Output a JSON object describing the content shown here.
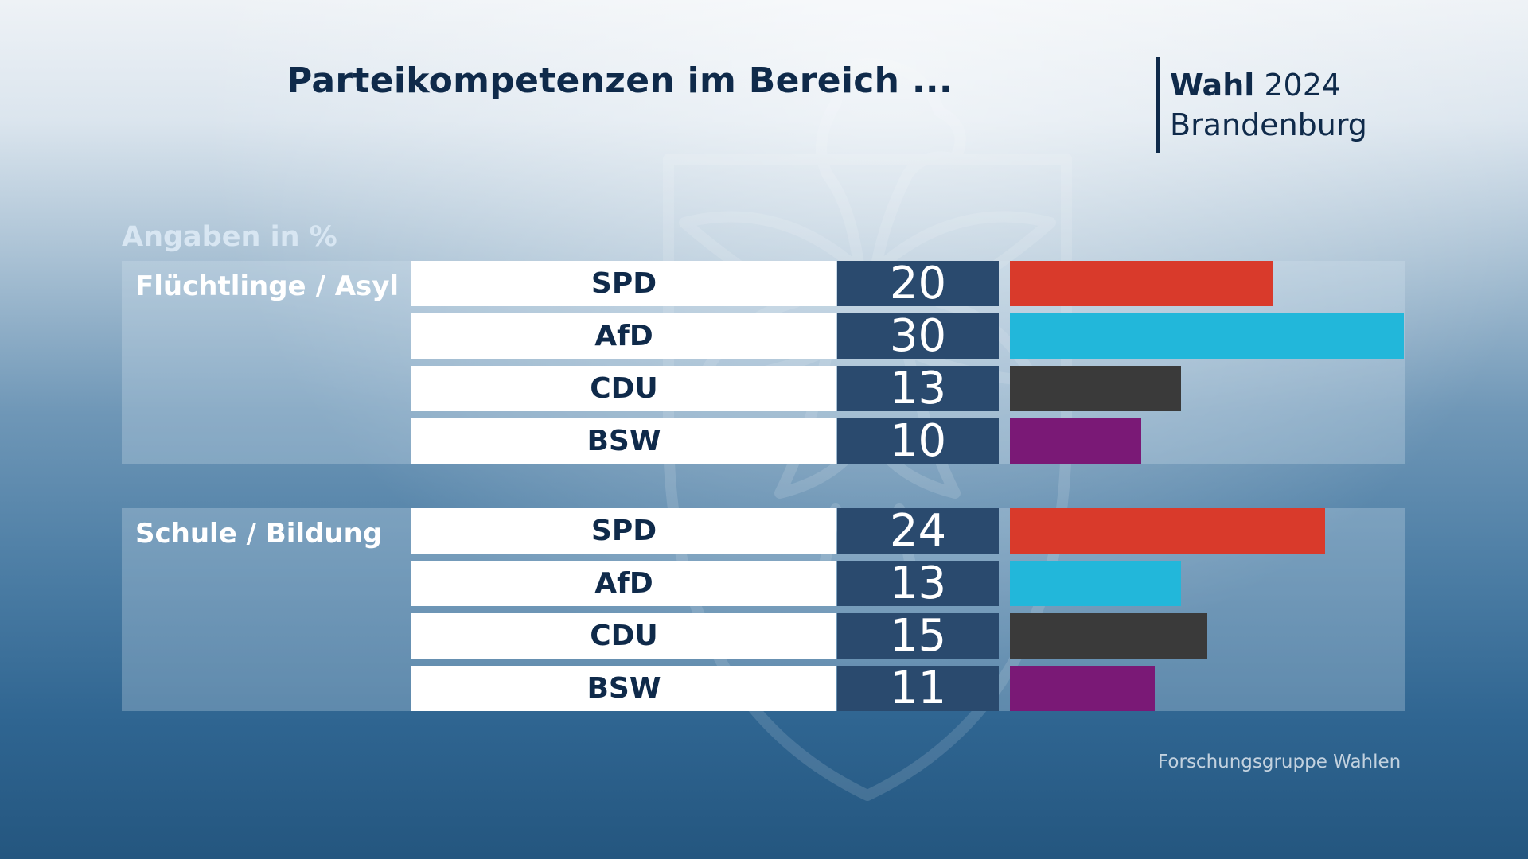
{
  "header": {
    "title": "Parteikompetenzen im Bereich ...",
    "brand_line1_bold": "Wahl",
    "brand_line1_rest": " 2024",
    "brand_line2": "Brandenburg"
  },
  "source": "Forschungsgruppe Wahlen",
  "colors": {
    "SPD": "#d93a2b",
    "AfD": "#22b7da",
    "CDU": "#3a3a3a",
    "BSW": "#7a1976"
  },
  "chart_data": {
    "type": "bar",
    "orientation": "horizontal",
    "title": "Parteikompetenzen im Bereich ...",
    "unit_label": "Angaben in %",
    "xlim": [
      0,
      30
    ],
    "groups": [
      {
        "name": "Flüchtlinge / Asyl",
        "bars": [
          {
            "party": "SPD",
            "value": 20
          },
          {
            "party": "AfD",
            "value": 30
          },
          {
            "party": "CDU",
            "value": 13
          },
          {
            "party": "BSW",
            "value": 10
          }
        ]
      },
      {
        "name": "Schule / Bildung",
        "bars": [
          {
            "party": "SPD",
            "value": 24
          },
          {
            "party": "AfD",
            "value": 13
          },
          {
            "party": "CDU",
            "value": 15
          },
          {
            "party": "BSW",
            "value": 11
          }
        ]
      }
    ]
  }
}
